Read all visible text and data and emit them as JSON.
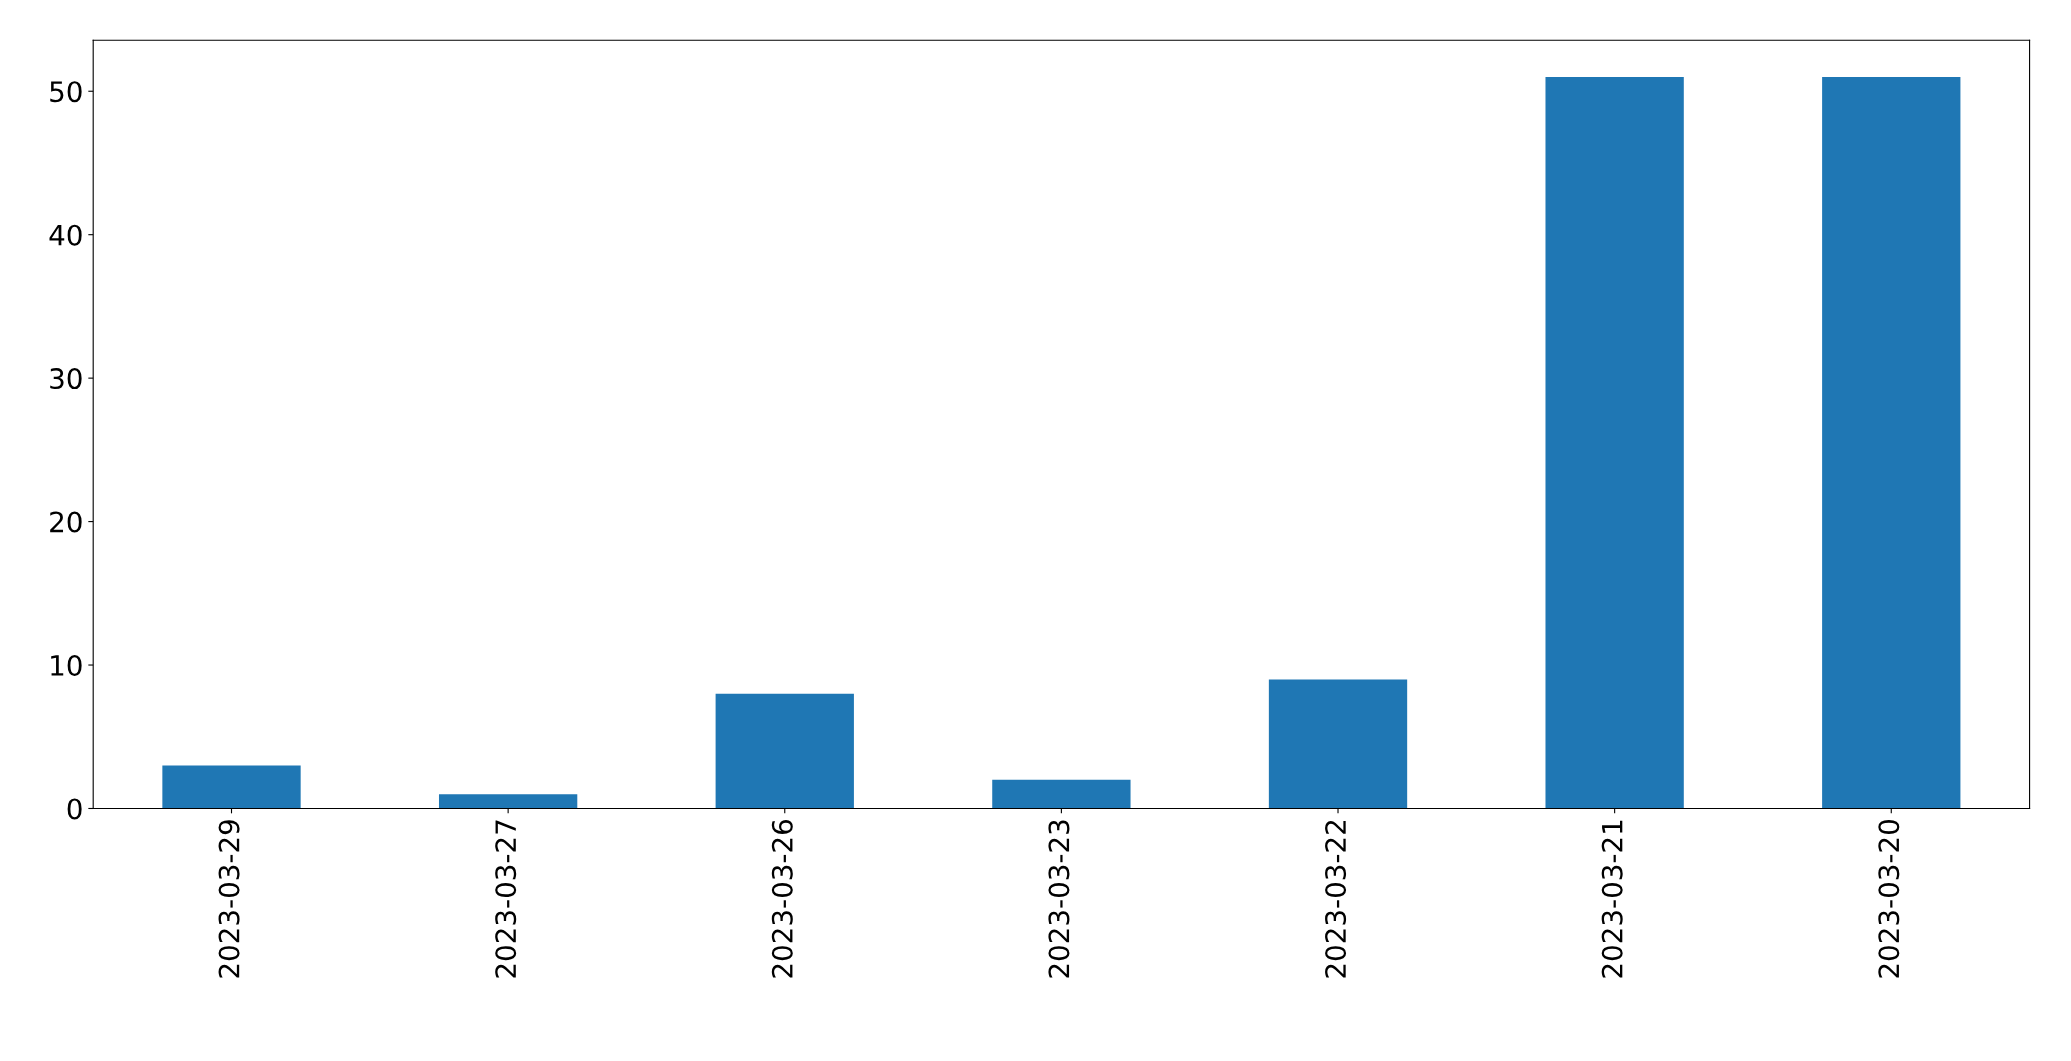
{
  "chart_data": {
    "type": "bar",
    "categories": [
      "2023-03-29",
      "2023-03-27",
      "2023-03-26",
      "2023-03-23",
      "2023-03-22",
      "2023-03-21",
      "2023-03-20"
    ],
    "values": [
      3,
      1,
      8,
      2,
      9,
      51,
      51
    ],
    "color": "#1f77b4",
    "ylim": [
      0,
      53.55
    ],
    "yticks": [
      0,
      10,
      20,
      30,
      40,
      50
    ],
    "grid": false,
    "legend": false
  }
}
